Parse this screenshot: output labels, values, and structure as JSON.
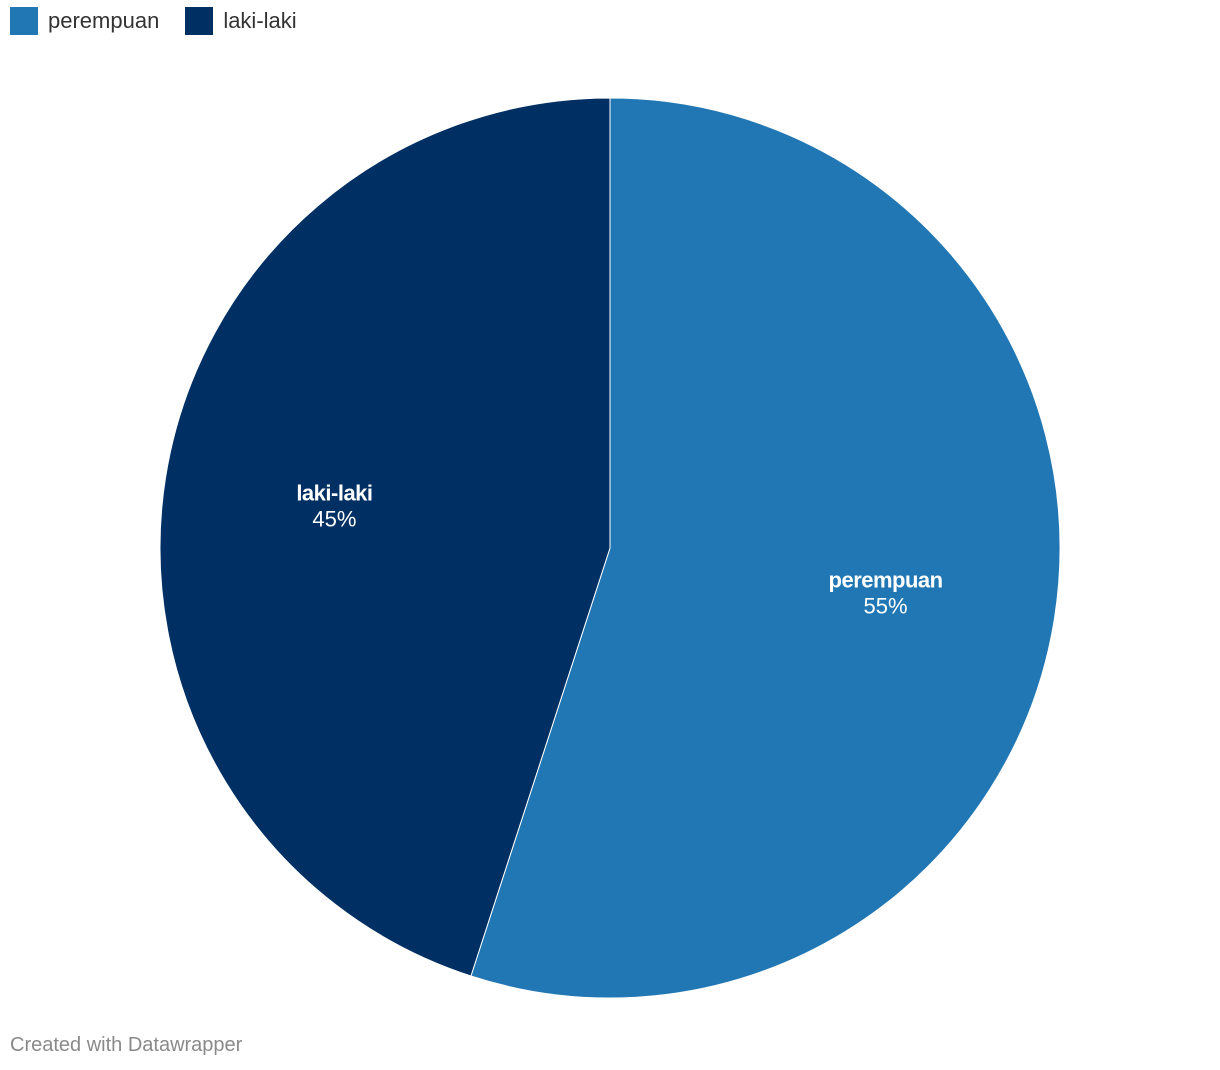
{
  "legend": [
    {
      "label": "perempuan",
      "color": "#2077b4"
    },
    {
      "label": "laki-laki",
      "color": "#003063"
    }
  ],
  "chart_data": {
    "type": "pie",
    "categories": [
      "perempuan",
      "laki-laki"
    ],
    "values": [
      55,
      45
    ],
    "value_labels": [
      "55%",
      "45%"
    ],
    "colors": [
      "#2077b4",
      "#003063"
    ],
    "legend_position": "top-left"
  },
  "footer": {
    "credit": "Created with Datawrapper"
  }
}
